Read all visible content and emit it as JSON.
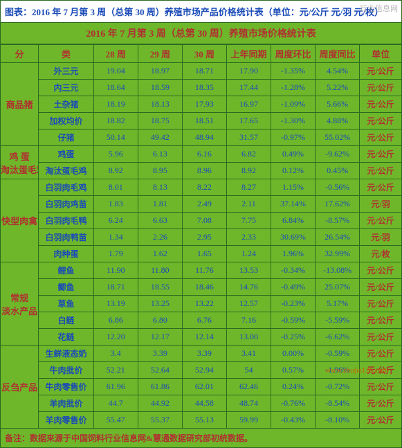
{
  "title_bar": "图表：2016 年 7 月第 3 周（总第 30 周）养殖市场产品价格统计表（单位：元/公斤 元/羽   元/枚）",
  "sub_title": "2016 年 7 月第 3 周（总第 30 周）养殖市场价格统计表",
  "headers": {
    "cat": "分",
    "sub": "类",
    "w28": "28 周",
    "w29": "29 周",
    "w30": "30 周",
    "sameperiod": "上年同期",
    "wow": "周度环比",
    "yoy": "周度同比",
    "unit": "单位"
  },
  "groups": [
    {
      "name": "商品猪",
      "rows": [
        {
          "sub": "外三元",
          "v": [
            "19.04",
            "18.97",
            "18.71",
            "17.90",
            "-1.35%",
            "4.54%"
          ],
          "unit": "元/公斤"
        },
        {
          "sub": "内三元",
          "v": [
            "18.64",
            "18.59",
            "18.35",
            "17.44",
            "-1.28%",
            "5.22%"
          ],
          "unit": "元/公斤"
        },
        {
          "sub": "土杂猪",
          "v": [
            "18.19",
            "18.13",
            "17.93",
            "16.97",
            "-1.09%",
            "5.66%"
          ],
          "unit": "元/公斤"
        },
        {
          "sub": "加权均价",
          "v": [
            "18.82",
            "18.75",
            "18.51",
            "17.65",
            "-1.30%",
            "4.88%"
          ],
          "unit": "元/公斤"
        },
        {
          "sub": "仔猪",
          "v": [
            "50.14",
            "49.42",
            "48.94",
            "31.57",
            "-0.97%",
            "55.02%"
          ],
          "unit": "元/公斤"
        }
      ]
    },
    {
      "name": "鸡 蛋\n淘汰蛋毛鸡",
      "rows": [
        {
          "sub": "鸡蛋",
          "v": [
            "5.96",
            "6.13",
            "6.16",
            "6.82",
            "0.49%",
            "-9.62%"
          ],
          "unit": "元/公斤"
        },
        {
          "sub": "淘汰蛋毛鸡",
          "v": [
            "8.92",
            "8.95",
            "8.96",
            "8.92",
            "0.12%",
            "0.45%"
          ],
          "unit": "元/公斤"
        }
      ]
    },
    {
      "name": "快型肉禽",
      "rows": [
        {
          "sub": "白羽肉毛鸡",
          "v": [
            "8.01",
            "8.13",
            "8.22",
            "8.27",
            "1.15%",
            "-0.56%"
          ],
          "unit": "元/公斤"
        },
        {
          "sub": "白羽肉鸡苗",
          "v": [
            "1.83",
            "1.81",
            "2.49",
            "2.11",
            "37.14%",
            "17.62%"
          ],
          "unit": "元/羽"
        },
        {
          "sub": "白羽肉毛鸭",
          "v": [
            "6.24",
            "6.63",
            "7.08",
            "7.75",
            "6.84%",
            "-8.57%"
          ],
          "unit": "元/公斤"
        },
        {
          "sub": "白羽肉鸭苗",
          "v": [
            "1.34",
            "2.26",
            "2.95",
            "2.33",
            "30.69%",
            "26.54%"
          ],
          "unit": "元/羽"
        },
        {
          "sub": "肉种蛋",
          "v": [
            "1.79",
            "1.62",
            "1.65",
            "1.24",
            "1.96%",
            "32.99%"
          ],
          "unit": "元/枚"
        }
      ]
    },
    {
      "name": "常规\n淡水产品",
      "rows": [
        {
          "sub": "鲤鱼",
          "v": [
            "11.90",
            "11.80",
            "11.76",
            "13.53",
            "-0.34%",
            "-13.08%"
          ],
          "unit": "元/公斤"
        },
        {
          "sub": "鲫鱼",
          "v": [
            "18.71",
            "18.55",
            "18.46",
            "14.76",
            "-0.49%",
            "25.07%"
          ],
          "unit": "元/公斤"
        },
        {
          "sub": "草鱼",
          "v": [
            "13.19",
            "13.25",
            "13.22",
            "12.57",
            "-0.23%",
            "5.17%"
          ],
          "unit": "元/公斤"
        },
        {
          "sub": "白鲢",
          "v": [
            "6.86",
            "6.80",
            "6.76",
            "7.16",
            "-0.59%",
            "-5.59%"
          ],
          "unit": "元/公斤"
        },
        {
          "sub": "花鲢",
          "v": [
            "12.20",
            "12.17",
            "12.14",
            "13.00",
            "-0.25%",
            "-6.62%"
          ],
          "unit": "元/公斤"
        }
      ]
    },
    {
      "name": "反刍产品",
      "rows": [
        {
          "sub": "生鲜液态奶",
          "v": [
            "3.4",
            "3.39",
            "3.39",
            "3.41",
            "0.00%",
            "-0.59%"
          ],
          "unit": "元/公斤"
        },
        {
          "sub": "牛肉批价",
          "v": [
            "52.21",
            "52.64",
            "52.94",
            "54",
            "0.57%",
            "-1.96%"
          ],
          "unit": "元/公斤"
        },
        {
          "sub": "牛肉零售价",
          "v": [
            "61.96",
            "61.86",
            "62.01",
            "62.46",
            "0.24%",
            "-0.72%"
          ],
          "unit": "元/公斤"
        },
        {
          "sub": "羊肉批价",
          "v": [
            "44.7",
            "44.92",
            "44.58",
            "48.74",
            "-0.76%",
            "-8.54%"
          ],
          "unit": "元/公斤"
        },
        {
          "sub": "羊肉零售价",
          "v": [
            "55.47",
            "55.37",
            "55.13",
            "59.99",
            "-0.43%",
            "-8.10%"
          ],
          "unit": "元/公斤"
        }
      ]
    }
  ],
  "footer": "备注：数据来源于中国饲料行业信息网&慧通数据研究部初统数据。",
  "watermark": "www.zhujia120.com",
  "watermark_top": "行业信息网"
}
